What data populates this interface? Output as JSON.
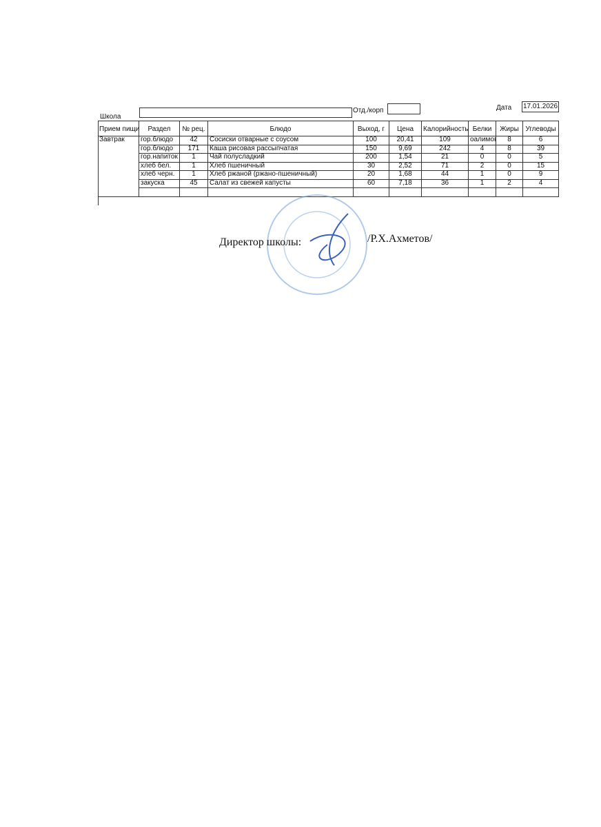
{
  "header": {
    "school_label": "Школа",
    "branch_label": "Отд./корп",
    "date_label": "Дата",
    "date": "17.01.2026"
  },
  "table": {
    "columns": [
      "Прием пищи",
      "Раздел",
      "№ рец.",
      "Блюдо",
      "Выход, г",
      "Цена",
      "Калорийность",
      "Белки",
      "Жиры",
      "Углеводы"
    ],
    "meal": "Завтрак",
    "rows": [
      [
        "гор.блюдо",
        "42",
        "Сосиски отварные с соусом",
        "100",
        "20,41",
        "109",
        "оалимов",
        "8",
        "6"
      ],
      [
        "гор.блюдо",
        "171",
        "Каша рисовая рассыпчатая",
        "150",
        "9,69",
        "242",
        "4",
        "8",
        "39"
      ],
      [
        "гор.напиток",
        "1",
        "Чай полусладкий",
        "200",
        "1,54",
        "21",
        "0",
        "0",
        "5"
      ],
      [
        "хлеб бел.",
        "1",
        "Хлеб пшеничный",
        "30",
        "2,52",
        "71",
        "2",
        "0",
        "15"
      ],
      [
        "хлеб черн.",
        "1",
        "Хлеб ржаной (ржано-пшеничный)",
        "20",
        "1,68",
        "44",
        "1",
        "0",
        "9"
      ],
      [
        "закуска",
        "45",
        "Салат из свежей капусты",
        "60",
        "7,18",
        "36",
        "1",
        "2",
        "4"
      ]
    ]
  },
  "footer": {
    "signature_title": "Директор школы:",
    "signature_name": "/Р.Х.Ахметов/"
  }
}
